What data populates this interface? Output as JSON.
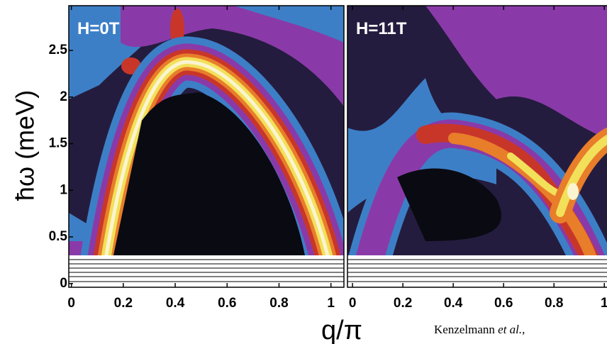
{
  "chart_data": [
    {
      "type": "contour",
      "annotation": "H=0T",
      "xlim": [
        -0.01,
        1.05
      ],
      "xticks": [
        0,
        0.2,
        0.4,
        0.6,
        0.8,
        1
      ],
      "ylim": [
        -0.04,
        2.98
      ],
      "yticks": [
        0,
        0.5,
        1,
        1.5,
        2,
        2.5
      ]
    },
    {
      "type": "contour",
      "annotation": "H=11T",
      "xlim": [
        -0.02,
        1.05
      ],
      "xticks": [
        0,
        0.2,
        0.4,
        0.6,
        0.8,
        1
      ],
      "ylim": [
        -0.04,
        2.98
      ]
    }
  ],
  "figure": {
    "xlabel": "q/π",
    "ylabel": "ħω (meV)",
    "caption": [
      "Kenzelmann ",
      "et al.",
      ","
    ]
  }
}
